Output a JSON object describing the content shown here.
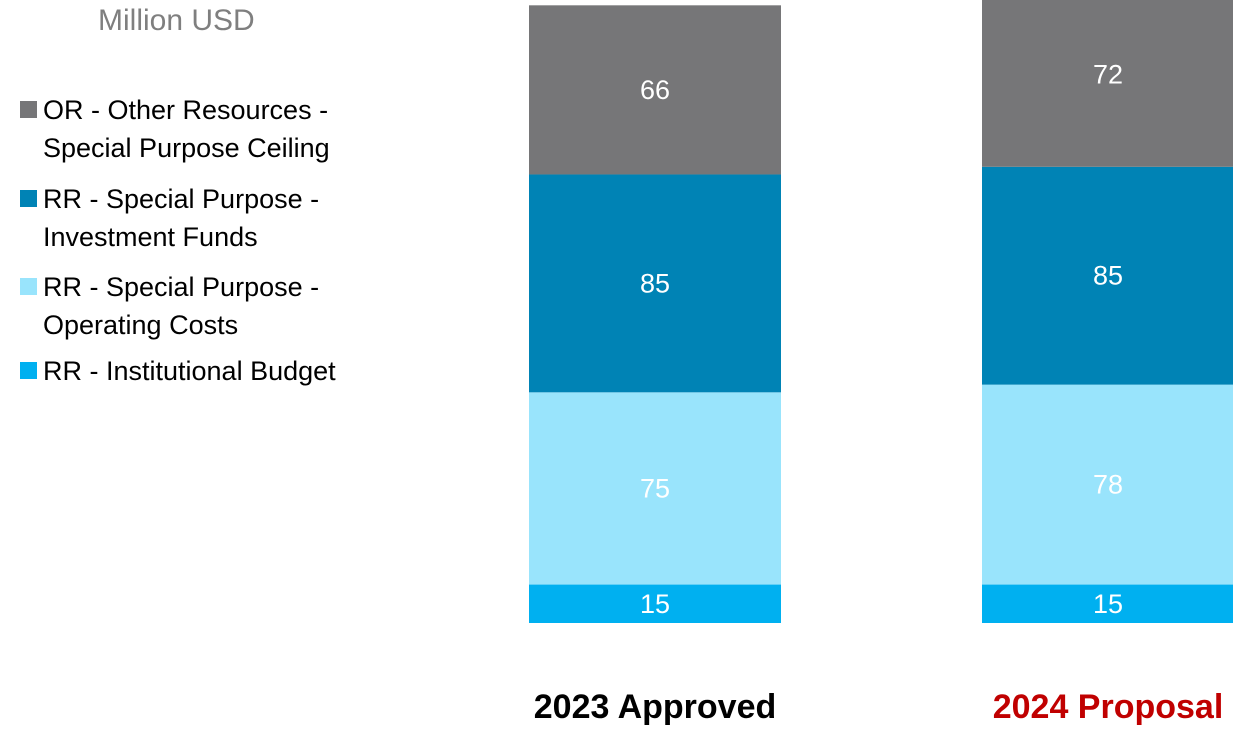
{
  "chart_data": {
    "type": "bar",
    "stacked": true,
    "unit": "Million USD",
    "categories": [
      "2023 Approved",
      "2024 Proposal"
    ],
    "category_colors": [
      "#000000",
      "#c00000"
    ],
    "series": [
      {
        "name": "RR - Institutional Budget",
        "values": [
          15,
          15
        ],
        "color": "#00b0f0",
        "label_color": "#ffffff"
      },
      {
        "name": "RR - Special Purpose - Operating Costs",
        "values": [
          75,
          78
        ],
        "color": "#99e4fc",
        "label_color": "#ffffff"
      },
      {
        "name": "RR - Special Purpose - Investment Funds",
        "values": [
          85,
          85
        ],
        "color": "#0083b5",
        "label_color": "#ffffff"
      },
      {
        "name": "OR - Other Resources - Special Purpose Ceiling",
        "values": [
          66,
          72
        ],
        "color": "#767678",
        "label_color": "#ffffff"
      }
    ],
    "legend": [
      {
        "label": "OR - Other Resources -\nSpecial Purpose Ceiling",
        "color": "#767678"
      },
      {
        "label": "RR - Special Purpose -\nInvestment Funds",
        "color": "#0083b5"
      },
      {
        "label": "RR - Special Purpose -\nOperating Costs",
        "color": "#99e4fc"
      },
      {
        "label": "RR - Institutional Budget",
        "color": "#00b0f0"
      }
    ],
    "legend_position": "left",
    "grid": false,
    "ylim": [
      0,
      250
    ]
  }
}
